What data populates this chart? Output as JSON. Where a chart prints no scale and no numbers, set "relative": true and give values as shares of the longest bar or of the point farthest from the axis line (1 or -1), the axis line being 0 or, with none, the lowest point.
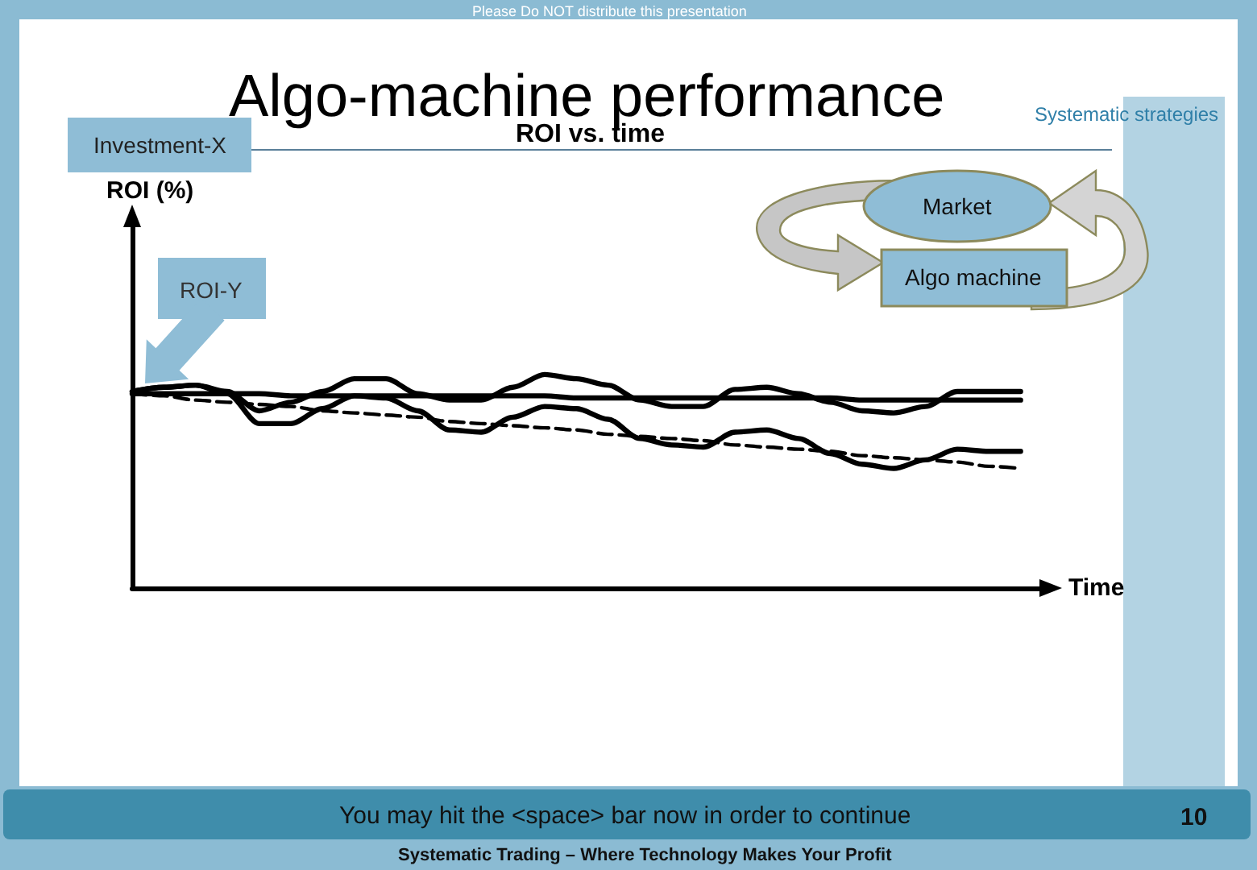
{
  "chart_data": {
    "type": "line",
    "title": "Algo-machine performance",
    "subtitle": "ROI vs. time",
    "xlabel": "Time",
    "annotations": [
      "Please Do NOT distribute this presentation",
      "Systematic strategies",
      "Investment-X",
      "ROI (%)",
      "ROI-Y",
      "Market",
      "Algo machine",
      "You may hit the <space> bar now in order to continue",
      "10",
      "Systematic Trading – Where Technology Makes Your Profit"
    ],
    "relative": true,
    "categories": [
      null,
      null,
      null,
      null,
      null,
      null,
      null,
      null,
      null,
      null,
      null,
      null,
      null,
      null,
      null,
      null,
      null,
      null,
      null,
      null,
      null,
      null,
      null,
      null,
      null,
      null,
      null,
      null,
      null,
      null
    ],
    "series": [
      {
        "color": "#000000",
        "values": [
          0.92,
          0.94,
          0.95,
          0.92,
          0.83,
          0.87,
          0.92,
          0.98,
          0.98,
          0.91,
          0.88,
          0.88,
          0.94,
          1,
          0.98,
          0.95,
          0.88,
          0.85,
          0.85,
          0.93,
          0.94,
          0.91,
          0.87,
          0.83,
          0.82,
          0.85,
          0.92,
          0.92,
          0.92,
          null
        ]
      },
      {
        "color": "#000000",
        "values": [
          0.92,
          0.94,
          0.95,
          0.91,
          0.77,
          0.77,
          0.84,
          0.9,
          0.89,
          0.83,
          0.74,
          0.73,
          0.8,
          0.85,
          0.84,
          0.79,
          0.7,
          0.67,
          0.66,
          0.73,
          0.74,
          0.7,
          0.63,
          0.58,
          0.56,
          0.6,
          0.65,
          0.64,
          0.64,
          null
        ]
      },
      {
        "color": "#000000",
        "values": [
          0.91,
          0.91,
          0.91,
          0.91,
          0.91,
          0.9,
          0.9,
          0.9,
          0.9,
          0.9,
          0.9,
          0.9,
          0.9,
          0.9,
          0.89,
          0.89,
          0.89,
          0.89,
          0.89,
          0.89,
          0.89,
          0.89,
          0.89,
          0.88,
          0.88,
          0.88,
          0.88,
          0.88,
          0.88,
          null
        ]
      },
      {
        "color": "#000000",
        "line_style": "dashed",
        "values": [
          0.91,
          0.9,
          0.88,
          0.87,
          0.86,
          0.85,
          0.83,
          0.82,
          0.81,
          0.8,
          0.78,
          0.77,
          0.76,
          0.75,
          0.74,
          0.72,
          0.71,
          0.7,
          0.69,
          0.67,
          0.66,
          0.65,
          0.64,
          0.62,
          0.61,
          0.6,
          0.59,
          0.57,
          0.56,
          null
        ]
      }
    ]
  }
}
